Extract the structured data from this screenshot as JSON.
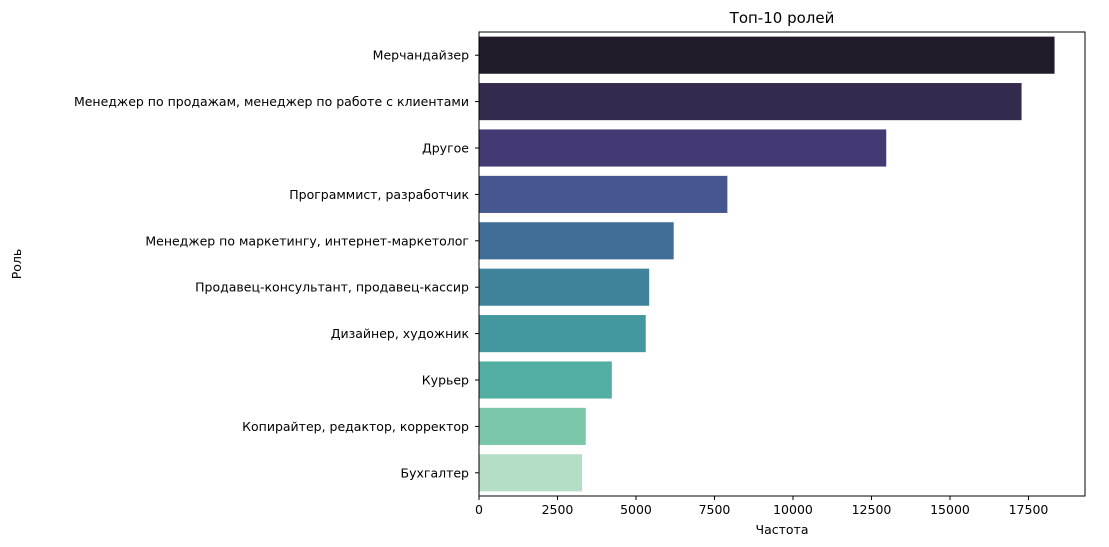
{
  "chart_data": {
    "type": "bar",
    "orientation": "horizontal",
    "title": "Топ-10 ролей",
    "xlabel": "Частота",
    "ylabel": "Роль",
    "xlim": [
      0,
      19300
    ],
    "xticks": [
      0,
      2500,
      5000,
      7500,
      10000,
      12500,
      15000,
      17500
    ],
    "grid": false,
    "categories": [
      "Мерчандайзер",
      "Менеджер по продажам, менеджер по работе с клиентами",
      "Другое",
      "Программист, разработчик",
      "Менеджер по маркетингу, интернет-маркетолог",
      "Продавец-консультант, продавец-кассир",
      "Дизайнер, художник",
      "Курьер",
      "Копирайтер, редактор, корректор",
      "Бухгалтер"
    ],
    "values": [
      18330,
      17280,
      12970,
      7910,
      6200,
      5420,
      5310,
      4230,
      3400,
      3280
    ],
    "colors": [
      "#211a29",
      "#342a4e",
      "#443a73",
      "#46568e",
      "#406d95",
      "#3f839b",
      "#43989f",
      "#52aea2",
      "#7ac7a9",
      "#b4dec5"
    ]
  }
}
